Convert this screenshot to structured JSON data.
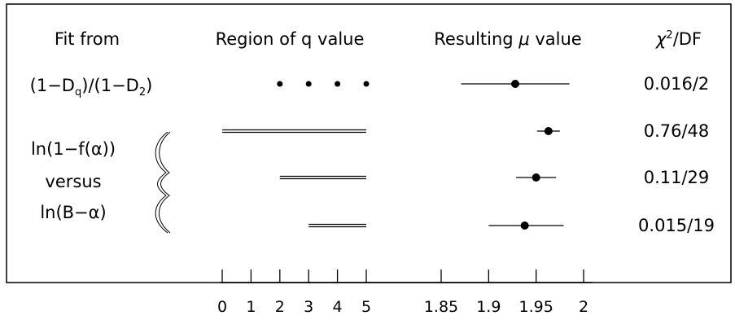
{
  "chart_data": {
    "type": "scatter",
    "headers": {
      "fit_from": "Fit from",
      "q_region": "Region of q value",
      "mu_result_prefix": "Resulting ",
      "mu_symbol": "μ",
      "mu_result_suffix": " value",
      "chi_symbol": "χ",
      "chi_exp": "2",
      "chi_suffix": "/DF"
    },
    "row_labels": {
      "ratio": [
        "(1−D",
        "q",
        ")/(1−D",
        "2",
        ")"
      ],
      "log_line1": "ln(1−f(α))",
      "log_line2": "versus",
      "log_line3": "ln(B−α)"
    },
    "q_axis": {
      "ticks": [
        0,
        1,
        2,
        3,
        4,
        5
      ],
      "tick_labels": [
        "0",
        "1",
        "2",
        "3",
        "4",
        "5"
      ],
      "range": [
        0,
        5
      ]
    },
    "mu_axis": {
      "ticks": [
        1.85,
        1.9,
        1.95,
        2
      ],
      "tick_labels": [
        "1.85",
        "1.9",
        "1.95",
        "2"
      ],
      "range": [
        1.85,
        2.0
      ]
    },
    "rows": [
      {
        "q_points": [
          2,
          3,
          4,
          5
        ],
        "q_range": null,
        "mu": 1.928,
        "mu_low": 1.871,
        "mu_high": 1.985,
        "chi": "0.016/2"
      },
      {
        "q_points": [],
        "q_range": [
          0,
          5
        ],
        "mu": 1.963,
        "mu_low": 1.951,
        "mu_high": 1.975,
        "chi": "0.76/48"
      },
      {
        "q_points": [],
        "q_range": [
          2,
          5
        ],
        "mu": 1.95,
        "mu_low": 1.929,
        "mu_high": 1.971,
        "chi": "0.11/29"
      },
      {
        "q_points": [],
        "q_range": [
          3,
          5
        ],
        "mu": 1.938,
        "mu_low": 1.9,
        "mu_high": 1.979,
        "chi": "0.015/19"
      }
    ]
  }
}
